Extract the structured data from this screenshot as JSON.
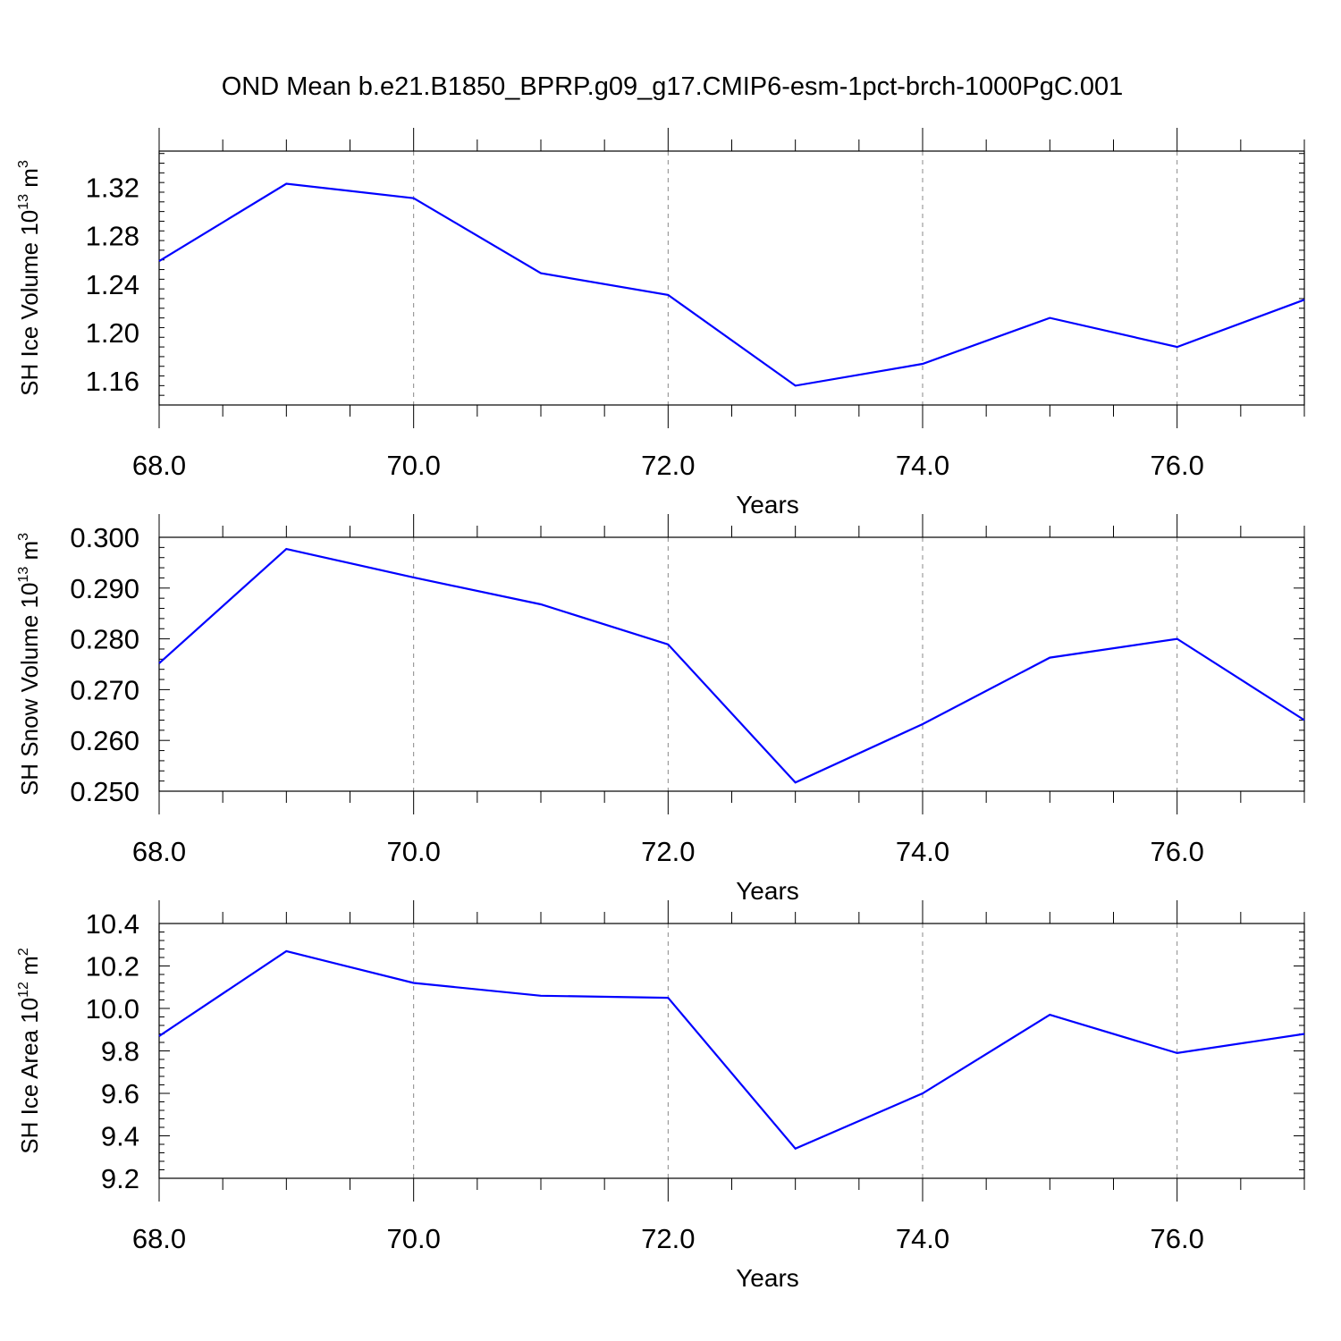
{
  "figure": {
    "title": "OND Mean b.e21.B1850_BPRP.g09_g17.CMIP6-esm-1pct-brch-1000PgC.001",
    "line_color": "#0000ff",
    "axis_color": "#000000",
    "grid_color": "#888888"
  },
  "chart_data": [
    {
      "type": "line",
      "title": "",
      "xlabel": "Years",
      "ylabel": "SH Ice Volume",
      "ylabel_unit": "10",
      "ylabel_exp": "13",
      "ylabel_unit2": " m",
      "ylabel_exp2": "3",
      "x": [
        68,
        69,
        70,
        71,
        72,
        73,
        74,
        75,
        76,
        77
      ],
      "series": [
        {
          "values": [
            1.259,
            1.323,
            1.311,
            1.249,
            1.231,
            1.156,
            1.174,
            1.212,
            1.188,
            1.227
          ]
        }
      ],
      "xlim": [
        68,
        77
      ],
      "ylim": [
        1.14,
        1.35
      ],
      "xticks": [
        68,
        70,
        72,
        74,
        76
      ],
      "xtick_labels": [
        "68.0",
        "70.0",
        "72.0",
        "74.0",
        "76.0"
      ],
      "yticks": [
        1.16,
        1.2,
        1.24,
        1.28,
        1.32
      ],
      "ytick_labels": [
        "1.16",
        "1.20",
        "1.24",
        "1.28",
        "1.32"
      ],
      "grid": "vertical dashed at major x ticks"
    },
    {
      "type": "line",
      "title": "",
      "xlabel": "Years",
      "ylabel": "SH Snow Volume",
      "ylabel_unit": "10",
      "ylabel_exp": "13",
      "ylabel_unit2": " m",
      "ylabel_exp2": "3",
      "x": [
        68,
        69,
        70,
        71,
        72,
        73,
        74,
        75,
        76,
        77
      ],
      "series": [
        {
          "values": [
            0.2752,
            0.2977,
            0.2921,
            0.2868,
            0.2789,
            0.2517,
            0.2632,
            0.2763,
            0.28,
            0.264
          ]
        }
      ],
      "xlim": [
        68,
        77
      ],
      "ylim": [
        0.25,
        0.3
      ],
      "xticks": [
        68,
        70,
        72,
        74,
        76
      ],
      "xtick_labels": [
        "68.0",
        "70.0",
        "72.0",
        "74.0",
        "76.0"
      ],
      "yticks": [
        0.25,
        0.26,
        0.27,
        0.28,
        0.29,
        0.3
      ],
      "ytick_labels": [
        "0.250",
        "0.260",
        "0.270",
        "0.280",
        "0.290",
        "0.300"
      ],
      "grid": "vertical dashed at major x ticks"
    },
    {
      "type": "line",
      "title": "",
      "xlabel": "Years",
      "ylabel": "SH Ice Area",
      "ylabel_unit": "10",
      "ylabel_exp": "12",
      "ylabel_unit2": " m",
      "ylabel_exp2": "2",
      "x": [
        68,
        69,
        70,
        71,
        72,
        73,
        74,
        75,
        76,
        77
      ],
      "series": [
        {
          "values": [
            9.87,
            10.27,
            10.12,
            10.06,
            10.05,
            9.34,
            9.6,
            9.97,
            9.79,
            9.88
          ]
        }
      ],
      "xlim": [
        68,
        77
      ],
      "ylim": [
        9.2,
        10.4
      ],
      "xticks": [
        68,
        70,
        72,
        74,
        76
      ],
      "xtick_labels": [
        "68.0",
        "70.0",
        "72.0",
        "74.0",
        "76.0"
      ],
      "yticks": [
        9.2,
        9.4,
        9.6,
        9.8,
        10.0,
        10.2,
        10.4
      ],
      "ytick_labels": [
        "9.2",
        "9.4",
        "9.6",
        "9.8",
        "10.0",
        "10.2",
        "10.4"
      ],
      "grid": "vertical dashed at major x ticks"
    }
  ]
}
